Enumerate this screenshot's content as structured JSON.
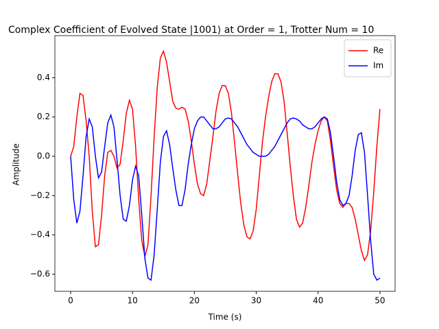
{
  "chart_data": {
    "type": "line",
    "title": "Complex Coefficient of Evolved State |1001⟩ at Order = 1, Trotter Num = 10",
    "x_label": "Time (s)",
    "y_label": "Amplitude",
    "x": [
      0,
      0.5,
      1,
      1.5,
      2,
      2.5,
      3,
      3.5,
      4,
      4.5,
      5,
      5.5,
      6,
      6.5,
      7,
      7.5,
      8,
      8.5,
      9,
      9.5,
      10,
      10.5,
      11,
      11.5,
      12,
      12.5,
      13,
      13.5,
      14,
      14.5,
      15,
      15.5,
      16,
      16.5,
      17,
      17.5,
      18,
      18.5,
      19,
      19.5,
      20,
      20.5,
      21,
      21.5,
      22,
      22.5,
      23,
      23.5,
      24,
      24.5,
      25,
      25.5,
      26,
      26.5,
      27,
      27.5,
      28,
      28.5,
      29,
      29.5,
      30,
      30.5,
      31,
      31.5,
      32,
      32.5,
      33,
      33.5,
      34,
      34.5,
      35,
      35.5,
      36,
      36.5,
      37,
      37.5,
      38,
      38.5,
      39,
      39.5,
      40,
      40.5,
      41,
      41.5,
      42,
      42.5,
      43,
      43.5,
      44,
      44.5,
      45,
      45.5,
      46,
      46.5,
      47,
      47.5,
      48,
      48.5,
      49,
      49.5,
      50
    ],
    "series": [
      {
        "name": "Re",
        "color": "#ff0000",
        "values": [
          0,
          0.05,
          0.2,
          0.32,
          0.31,
          0.18,
          0.0,
          -0.28,
          -0.46,
          -0.45,
          -0.3,
          -0.1,
          0.02,
          0.03,
          0.0,
          -0.06,
          -0.04,
          0.08,
          0.22,
          0.285,
          0.24,
          0.05,
          -0.22,
          -0.43,
          -0.51,
          -0.45,
          -0.2,
          0.1,
          0.35,
          0.5,
          0.535,
          0.48,
          0.38,
          0.28,
          0.245,
          0.24,
          0.25,
          0.24,
          0.18,
          0.08,
          -0.04,
          -0.14,
          -0.19,
          -0.2,
          -0.14,
          -0.02,
          0.1,
          0.23,
          0.32,
          0.36,
          0.36,
          0.32,
          0.22,
          0.07,
          -0.09,
          -0.24,
          -0.35,
          -0.41,
          -0.42,
          -0.38,
          -0.27,
          -0.1,
          0.07,
          0.2,
          0.3,
          0.38,
          0.42,
          0.42,
          0.38,
          0.28,
          0.12,
          -0.05,
          -0.2,
          -0.32,
          -0.36,
          -0.34,
          -0.26,
          -0.15,
          -0.03,
          0.06,
          0.13,
          0.18,
          0.2,
          0.18,
          0.08,
          -0.05,
          -0.17,
          -0.24,
          -0.26,
          -0.24,
          -0.24,
          -0.26,
          -0.32,
          -0.4,
          -0.48,
          -0.53,
          -0.5,
          -0.38,
          -0.18,
          0.05,
          0.24
        ]
      },
      {
        "name": "Im",
        "color": "#0000ff",
        "values": [
          0,
          -0.22,
          -0.34,
          -0.28,
          -0.1,
          0.1,
          0.19,
          0.15,
          0.0,
          -0.11,
          -0.08,
          0.05,
          0.17,
          0.21,
          0.15,
          -0.02,
          -0.2,
          -0.32,
          -0.33,
          -0.25,
          -0.12,
          -0.05,
          -0.1,
          -0.3,
          -0.52,
          -0.62,
          -0.63,
          -0.5,
          -0.27,
          -0.03,
          0.1,
          0.13,
          0.06,
          -0.06,
          -0.17,
          -0.25,
          -0.25,
          -0.17,
          -0.04,
          0.06,
          0.14,
          0.18,
          0.2,
          0.2,
          0.18,
          0.16,
          0.14,
          0.14,
          0.15,
          0.17,
          0.19,
          0.195,
          0.19,
          0.17,
          0.15,
          0.12,
          0.09,
          0.06,
          0.04,
          0.02,
          0.01,
          0.0,
          0.0,
          0.0,
          0.01,
          0.03,
          0.05,
          0.08,
          0.11,
          0.14,
          0.17,
          0.19,
          0.195,
          0.19,
          0.18,
          0.16,
          0.15,
          0.14,
          0.14,
          0.15,
          0.17,
          0.19,
          0.2,
          0.19,
          0.12,
          0.0,
          -0.13,
          -0.22,
          -0.25,
          -0.24,
          -0.2,
          -0.1,
          0.03,
          0.11,
          0.12,
          0.02,
          -0.2,
          -0.43,
          -0.6,
          -0.63,
          -0.62
        ]
      }
    ],
    "xlim": [
      -2.55,
      52.45
    ],
    "xticks": [
      0,
      10,
      20,
      30,
      40,
      50
    ],
    "ylim": [
      -0.687,
      0.614
    ],
    "yticks": [
      {
        "value": -0.6,
        "label": "−0.6"
      },
      {
        "value": -0.4,
        "label": "−0.4"
      },
      {
        "value": -0.2,
        "label": "−0.2"
      },
      {
        "value": 0,
        "label": "0.0"
      },
      0.2,
      0.4
    ],
    "legend": "upper right",
    "grid": false
  }
}
